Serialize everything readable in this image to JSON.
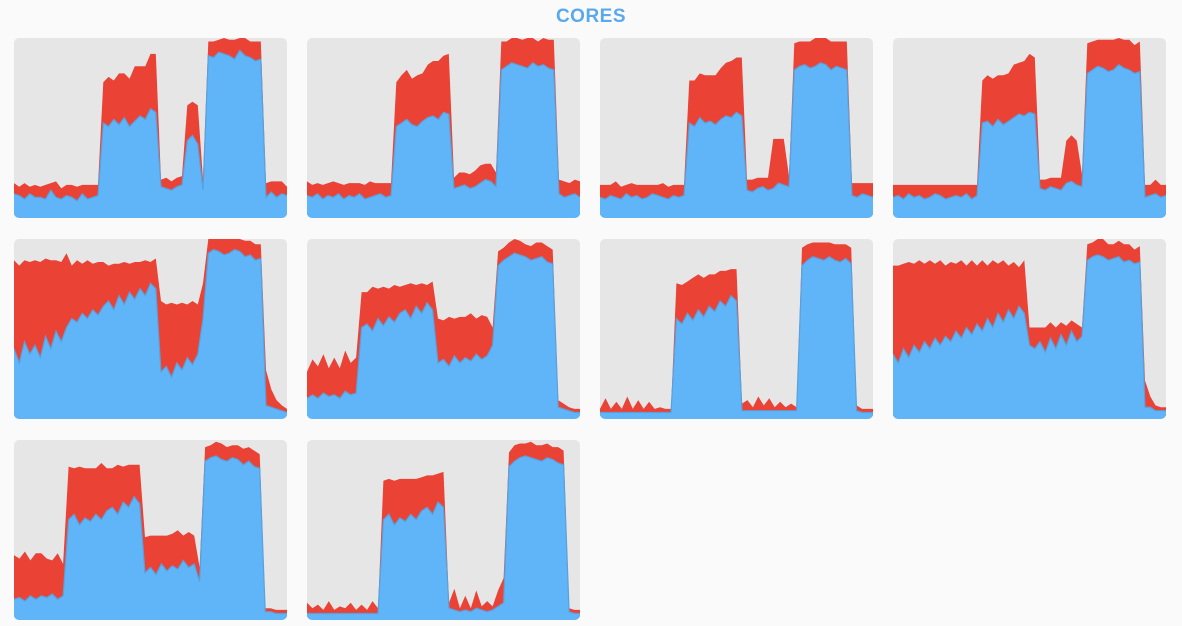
{
  "header": {
    "title": "CORES"
  },
  "colors": {
    "page_bg": "#fafafa",
    "panel_bg": "#e6e6e6",
    "title": "#5aa9ec",
    "system": "#ea4235",
    "user": "#5fb5f7",
    "user_line": "#5aa0dc"
  },
  "chart_data": [
    {
      "type": "area",
      "title": "",
      "stacked": true,
      "ylim": [
        0,
        100
      ],
      "grid": false,
      "series": [
        {
          "name": "",
          "values": [
            12,
            11,
            9,
            12,
            10,
            10,
            9,
            14,
            10,
            9,
            11,
            10,
            8,
            12,
            9,
            10,
            11,
            52,
            50,
            54,
            51,
            55,
            50,
            53,
            56,
            54,
            60,
            58,
            16,
            15,
            14,
            16,
            17,
            42,
            45,
            40,
            14,
            90,
            89,
            92,
            91,
            90,
            88,
            93,
            90,
            89,
            87,
            88,
            10,
            13,
            10,
            12,
            11
          ]
        },
        {
          "name": "",
          "values": [
            6,
            5,
            9,
            4,
            7,
            6,
            8,
            4,
            9,
            6,
            6,
            7,
            8,
            5,
            8,
            7,
            6,
            23,
            28,
            22,
            29,
            25,
            27,
            31,
            28,
            30,
            31,
            33,
            4,
            6,
            5,
            5,
            5,
            20,
            19,
            22,
            6,
            8,
            9,
            7,
            10,
            9,
            11,
            8,
            10,
            9,
            11,
            10,
            8,
            6,
            9,
            7,
            5
          ]
        }
      ]
    },
    {
      "type": "area",
      "title": "",
      "stacked": true,
      "ylim": [
        0,
        100
      ],
      "grid": false,
      "series": [
        {
          "name": "",
          "values": [
            11,
            10,
            12,
            9,
            11,
            10,
            12,
            9,
            11,
            10,
            12,
            9,
            10,
            11,
            12,
            10,
            11,
            50,
            52,
            54,
            51,
            50,
            53,
            55,
            56,
            54,
            58,
            57,
            15,
            16,
            17,
            15,
            16,
            18,
            20,
            19,
            16,
            82,
            84,
            86,
            85,
            84,
            83,
            86,
            84,
            85,
            83,
            82,
            12,
            10,
            11,
            12,
            10
          ]
        },
        {
          "name": "",
          "values": [
            8,
            7,
            6,
            8,
            7,
            9,
            6,
            8,
            7,
            8,
            6,
            8,
            9,
            7,
            6,
            8,
            7,
            25,
            27,
            28,
            26,
            29,
            27,
            30,
            31,
            33,
            32,
            34,
            6,
            8,
            7,
            8,
            9,
            10,
            9,
            10,
            8,
            16,
            14,
            15,
            16,
            15,
            17,
            16,
            14,
            15,
            16,
            17,
            8,
            9,
            7,
            8,
            9
          ]
        }
      ]
    },
    {
      "type": "area",
      "title": "",
      "stacked": true,
      "ylim": [
        0,
        100
      ],
      "grid": false,
      "series": [
        {
          "name": "",
          "values": [
            10,
            9,
            11,
            10,
            9,
            12,
            10,
            11,
            9,
            10,
            12,
            11,
            10,
            9,
            11,
            10,
            11,
            52,
            50,
            55,
            52,
            53,
            51,
            54,
            56,
            55,
            58,
            56,
            14,
            13,
            15,
            16,
            14,
            15,
            18,
            17,
            16,
            82,
            84,
            85,
            83,
            84,
            86,
            85,
            82,
            84,
            83,
            82,
            11,
            10,
            12,
            11,
            10
          ]
        },
        {
          "name": "",
          "values": [
            7,
            8,
            6,
            9,
            7,
            5,
            8,
            6,
            8,
            7,
            5,
            6,
            8,
            7,
            6,
            7,
            6,
            24,
            26,
            25,
            27,
            26,
            28,
            29,
            30,
            32,
            31,
            33,
            6,
            7,
            6,
            5,
            7,
            28,
            25,
            26,
            6,
            15,
            14,
            13,
            15,
            16,
            14,
            15,
            16,
            14,
            15,
            16,
            7,
            8,
            6,
            7,
            8
          ]
        }
      ]
    },
    {
      "type": "area",
      "title": "",
      "stacked": true,
      "ylim": [
        0,
        100
      ],
      "grid": false,
      "series": [
        {
          "name": "",
          "values": [
            10,
            11,
            9,
            12,
            10,
            11,
            9,
            10,
            12,
            11,
            9,
            10,
            11,
            10,
            12,
            9,
            11,
            52,
            53,
            50,
            54,
            51,
            53,
            55,
            57,
            56,
            58,
            57,
            15,
            14,
            16,
            15,
            14,
            18,
            19,
            17,
            16,
            80,
            82,
            84,
            83,
            81,
            82,
            85,
            83,
            82,
            80,
            81,
            10,
            11,
            12,
            10,
            11
          ]
        },
        {
          "name": "",
          "values": [
            7,
            6,
            8,
            5,
            7,
            6,
            8,
            7,
            5,
            6,
            8,
            7,
            6,
            7,
            5,
            8,
            6,
            24,
            26,
            27,
            25,
            28,
            27,
            30,
            29,
            31,
            33,
            32,
            5,
            6,
            5,
            6,
            7,
            24,
            26,
            25,
            7,
            17,
            16,
            15,
            16,
            18,
            17,
            15,
            16,
            17,
            16,
            17,
            7,
            6,
            8,
            7,
            6
          ]
        }
      ]
    },
    {
      "type": "area",
      "title": "",
      "stacked": true,
      "ylim": [
        0,
        100
      ],
      "grid": false,
      "series": [
        {
          "name": "",
          "values": [
            38,
            30,
            42,
            35,
            40,
            33,
            45,
            38,
            48,
            42,
            50,
            55,
            53,
            58,
            55,
            60,
            57,
            62,
            65,
            60,
            68,
            63,
            70,
            66,
            72,
            68,
            75,
            72,
            25,
            28,
            22,
            30,
            26,
            33,
            29,
            35,
            55,
            92,
            94,
            93,
            91,
            92,
            94,
            93,
            90,
            91,
            88,
            89,
            6,
            5,
            4,
            3,
            2
          ]
        },
        {
          "name": "",
          "values": [
            50,
            55,
            46,
            52,
            48,
            54,
            44,
            50,
            40,
            45,
            42,
            30,
            35,
            28,
            33,
            26,
            30,
            25,
            20,
            26,
            18,
            24,
            16,
            21,
            15,
            20,
            12,
            17,
            40,
            35,
            42,
            33,
            38,
            30,
            36,
            28,
            20,
            8,
            7,
            8,
            9,
            8,
            7,
            8,
            9,
            8,
            9,
            8,
            20,
            10,
            5,
            3,
            2
          ]
        }
      ]
    },
    {
      "type": "area",
      "title": "",
      "stacked": true,
      "ylim": [
        0,
        100
      ],
      "grid": false,
      "series": [
        {
          "name": "",
          "values": [
            10,
            12,
            10,
            13,
            11,
            12,
            10,
            14,
            12,
            13,
            50,
            52,
            48,
            55,
            51,
            56,
            53,
            58,
            60,
            55,
            62,
            58,
            64,
            60,
            30,
            32,
            28,
            34,
            30,
            33,
            31,
            35,
            32,
            34,
            40,
            85,
            88,
            90,
            92,
            91,
            90,
            88,
            89,
            90,
            87,
            86,
            5,
            4,
            3,
            2,
            2
          ]
        },
        {
          "name": "",
          "values": [
            15,
            20,
            18,
            22,
            16,
            21,
            17,
            23,
            18,
            20,
            20,
            18,
            25,
            17,
            22,
            16,
            21,
            15,
            14,
            20,
            12,
            17,
            10,
            16,
            25,
            22,
            28,
            21,
            26,
            23,
            27,
            20,
            25,
            22,
            10,
            8,
            7,
            8,
            9,
            8,
            7,
            8,
            9,
            8,
            9,
            8,
            4,
            3,
            2,
            2,
            2
          ]
        }
      ]
    },
    {
      "type": "area",
      "title": "",
      "stacked": true,
      "ylim": [
        0,
        100
      ],
      "grid": false,
      "series": [
        {
          "name": "",
          "values": [
            2,
            2,
            2,
            2,
            2,
            2,
            2,
            2,
            2,
            2,
            2,
            2,
            2,
            2,
            55,
            52,
            58,
            54,
            60,
            56,
            62,
            59,
            65,
            62,
            68,
            65,
            3,
            3,
            3,
            3,
            3,
            3,
            3,
            3,
            3,
            3,
            3,
            85,
            88,
            90,
            89,
            88,
            90,
            88,
            87,
            89,
            86,
            3,
            2,
            2,
            2
          ]
        },
        {
          "name": "",
          "values": [
            2,
            8,
            2,
            6,
            2,
            9,
            2,
            7,
            2,
            6,
            2,
            3,
            2,
            2,
            20,
            22,
            18,
            24,
            20,
            22,
            18,
            21,
            17,
            20,
            15,
            18,
            4,
            6,
            2,
            8,
            3,
            7,
            2,
            5,
            2,
            4,
            2,
            10,
            9,
            8,
            9,
            10,
            8,
            9,
            10,
            8,
            9,
            3,
            2,
            2,
            2
          ]
        }
      ]
    },
    {
      "type": "area",
      "title": "",
      "stacked": true,
      "ylim": [
        0,
        100
      ],
      "grid": false,
      "series": [
        {
          "name": "",
          "values": [
            35,
            30,
            38,
            33,
            40,
            36,
            42,
            38,
            44,
            40,
            45,
            42,
            48,
            44,
            50,
            46,
            52,
            48,
            55,
            50,
            58,
            53,
            60,
            55,
            62,
            58,
            40,
            38,
            42,
            36,
            44,
            38,
            46,
            40,
            48,
            42,
            45,
            88,
            90,
            91,
            90,
            88,
            89,
            90,
            87,
            88,
            86,
            87,
            5,
            5,
            3,
            3,
            3
          ]
        },
        {
          "name": "",
          "values": [
            50,
            55,
            48,
            54,
            46,
            52,
            44,
            50,
            42,
            48,
            40,
            45,
            38,
            44,
            35,
            42,
            33,
            40,
            30,
            38,
            28,
            35,
            25,
            32,
            22,
            30,
            10,
            12,
            8,
            14,
            9,
            12,
            7,
            11,
            6,
            10,
            5,
            9,
            8,
            9,
            10,
            9,
            8,
            9,
            10,
            9,
            8,
            9,
            15,
            6,
            3,
            2,
            2
          ]
        }
      ]
    },
    {
      "type": "area",
      "title": "",
      "stacked": true,
      "ylim": [
        0,
        100
      ],
      "grid": false,
      "series": [
        {
          "name": "",
          "values": [
            10,
            11,
            9,
            12,
            10,
            12,
            11,
            13,
            10,
            12,
            55,
            58,
            52,
            56,
            54,
            58,
            55,
            60,
            62,
            58,
            65,
            62,
            68,
            64,
            25,
            28,
            24,
            30,
            26,
            29,
            27,
            32,
            28,
            30,
            20,
            88,
            90,
            91,
            89,
            88,
            90,
            89,
            86,
            88,
            85,
            84,
            3,
            3,
            2,
            2,
            2
          ]
        },
        {
          "name": "",
          "values": [
            25,
            22,
            28,
            20,
            26,
            24,
            22,
            19,
            26,
            18,
            30,
            26,
            33,
            28,
            30,
            26,
            32,
            24,
            22,
            28,
            20,
            24,
            18,
            22,
            20,
            18,
            22,
            16,
            20,
            18,
            22,
            14,
            20,
            16,
            8,
            8,
            7,
            8,
            9,
            8,
            7,
            8,
            9,
            8,
            9,
            8,
            2,
            2,
            2,
            2,
            2
          ]
        }
      ]
    },
    {
      "type": "area",
      "title": "",
      "stacked": true,
      "ylim": [
        0,
        100
      ],
      "grid": false,
      "series": [
        {
          "name": "",
          "values": [
            2,
            2,
            2,
            2,
            2,
            2,
            2,
            2,
            2,
            2,
            2,
            2,
            2,
            2,
            55,
            58,
            52,
            56,
            54,
            58,
            55,
            60,
            62,
            58,
            65,
            62,
            5,
            4,
            3,
            4,
            3,
            5,
            4,
            3,
            4,
            6,
            8,
            85,
            88,
            90,
            91,
            90,
            89,
            88,
            90,
            89,
            87,
            86,
            3,
            2,
            2
          ]
        },
        {
          "name": "",
          "values": [
            6,
            3,
            5,
            2,
            7,
            2,
            4,
            3,
            6,
            2,
            5,
            2,
            7,
            3,
            22,
            20,
            25,
            22,
            24,
            20,
            23,
            19,
            18,
            22,
            16,
            20,
            3,
            12,
            2,
            8,
            2,
            10,
            2,
            6,
            2,
            9,
            14,
            8,
            9,
            8,
            7,
            9,
            8,
            9,
            8,
            7,
            9,
            8,
            2,
            2,
            2
          ]
        }
      ]
    }
  ]
}
